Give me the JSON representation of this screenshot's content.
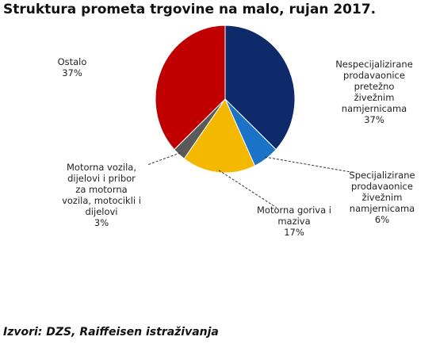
{
  "chart_data": {
    "type": "pie",
    "title": "Struktura prometa trgovine na malo, rujan 2017.",
    "slices": [
      {
        "label_lines": [
          "Nespecijalizirane",
          "prodavaonice",
          "pretežno",
          "živežnim",
          "namjernicama"
        ],
        "value": 37,
        "value_label": "37%",
        "color": "#0f2a6b"
      },
      {
        "label_lines": [
          "Specijalizirane",
          "prodavaonice",
          "živežnim",
          "namjernicama"
        ],
        "value": 6,
        "value_label": "6%",
        "color": "#1a73c7"
      },
      {
        "label_lines": [
          "Motorna goriva i",
          "maziva"
        ],
        "value": 17,
        "value_label": "17%",
        "color": "#f5b800"
      },
      {
        "label_lines": [
          "Motorna vozila,",
          "dijelovi i pribor",
          "za motorna",
          "vozila, motocikli i",
          "dijelovi"
        ],
        "value": 3,
        "value_label": "3%",
        "color": "#5a5a5a"
      },
      {
        "label_lines": [
          "Ostalo"
        ],
        "value": 37,
        "value_label": "37%",
        "color": "#c00000"
      }
    ]
  },
  "source": "Izvori: DZS, Raiffeisen istraživanja"
}
